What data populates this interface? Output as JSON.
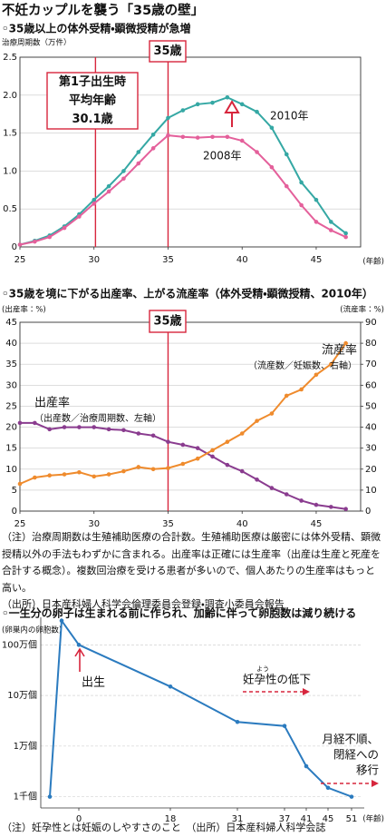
{
  "header": {
    "title": "不妊カップルを襲う「35歳の壁」"
  },
  "chart_data": [
    {
      "type": "line",
      "subtitle": "◦35歳以上の体外受精・顕微授精が急増",
      "y_label": "治療周期数（万件）",
      "x_label": "(年齢)",
      "x": [
        25,
        26,
        27,
        28,
        29,
        30,
        31,
        32,
        33,
        34,
        35,
        36,
        37,
        38,
        39,
        40,
        41,
        42,
        43,
        44,
        45,
        46,
        47
      ],
      "xlim": [
        25,
        48
      ],
      "xticks": [
        25,
        30,
        35,
        40,
        45
      ],
      "ylim": [
        0,
        2.5
      ],
      "yticks": [
        0,
        0.5,
        {
          "value": 1,
          "label": "1.0"
        },
        1.5,
        {
          "value": 2,
          "label": "2.0"
        },
        2.5
      ],
      "grid": true,
      "series": [
        {
          "name": "2010年",
          "color": "#35a8a4",
          "values": [
            0.03,
            0.08,
            0.15,
            0.27,
            0.43,
            0.62,
            0.8,
            1.0,
            1.25,
            1.48,
            1.7,
            1.8,
            1.88,
            1.9,
            1.97,
            1.88,
            1.78,
            1.57,
            1.22,
            0.85,
            0.62,
            0.33,
            0.18
          ]
        },
        {
          "name": "2008年",
          "color": "#e4609b",
          "values": [
            0.03,
            0.07,
            0.13,
            0.25,
            0.4,
            0.57,
            0.73,
            0.9,
            1.1,
            1.3,
            1.47,
            1.45,
            1.44,
            1.45,
            1.45,
            1.4,
            1.25,
            1.05,
            0.8,
            0.55,
            0.33,
            0.22,
            0.13
          ]
        }
      ],
      "reference_lines": [
        {
          "x": 30.1,
          "label": [
            "第1子出生時",
            "平均年齢",
            "30.1歳"
          ]
        },
        {
          "x": 35,
          "label": [
            "35歳"
          ]
        }
      ]
    },
    {
      "type": "line",
      "subtitle": "◦35歳を境に下がる出産率、上がる流産率（体外受精・顕微授精、2010年）",
      "y_label": "(出産率：%)",
      "y2_label": "(流産率：%)",
      "x": [
        25,
        26,
        27,
        28,
        29,
        30,
        31,
        32,
        33,
        34,
        35,
        36,
        37,
        38,
        39,
        40,
        41,
        42,
        43,
        44,
        45,
        46,
        47
      ],
      "xlim": [
        25,
        48
      ],
      "xticks": [
        25,
        30,
        35,
        40,
        45
      ],
      "ylim": [
        0,
        45
      ],
      "yticks": [
        0,
        5,
        10,
        15,
        20,
        25,
        30,
        35,
        40,
        45
      ],
      "y2lim": [
        0,
        90
      ],
      "y2ticks": [
        0,
        10,
        20,
        30,
        40,
        50,
        60,
        70,
        80,
        90
      ],
      "grid": true,
      "series": [
        {
          "name": "出産率",
          "note": "（出産数／治療周期数、左軸）",
          "color": "#8a3c8f",
          "values": [
            21,
            21,
            19.5,
            20,
            20,
            20,
            19.5,
            19.3,
            18.5,
            18,
            16.5,
            15.8,
            15,
            13,
            11,
            9.5,
            7.5,
            5.5,
            4,
            2.5,
            1.5,
            1,
            0.5
          ]
        },
        {
          "name": "流産率",
          "note": "（流産数／妊娠数、右軸）",
          "color": "#ef8b2d",
          "axis": "y2",
          "values": [
            13,
            16,
            17,
            17.5,
            18.5,
            16.5,
            17.5,
            19,
            21,
            20,
            20.5,
            22.5,
            25,
            29,
            33,
            37,
            43,
            46.5,
            55,
            58,
            65,
            70,
            80
          ]
        }
      ],
      "reference_lines": [
        {
          "x": 35,
          "label": [
            "35歳"
          ]
        }
      ]
    },
    {
      "type": "line",
      "subtitle": "◦一生分の卵子は生まれる前に作られ、加齢に伴って卵胞数は減り続ける",
      "y_label": "(卵巣内の卵胞数)",
      "x_label": "(年齢)",
      "categories": [
        null,
        null,
        "0",
        "18",
        "31",
        "37",
        "41",
        "45",
        "51"
      ],
      "yscale": "log",
      "ylim": [
        600,
        3500000
      ],
      "yticks": [
        {
          "value": 1000,
          "label": "1千個"
        },
        {
          "value": 10000,
          "label": "1万個"
        },
        {
          "value": 100000,
          "label": "10万個"
        },
        {
          "value": 1000000,
          "label": "100万個"
        }
      ],
      "grid": true,
      "color": "#2b7bbf",
      "values": [
        1000,
        3000000,
        1000000,
        150000,
        30000,
        25000,
        4000,
        1500,
        1000
      ],
      "annotations": [
        {
          "text": [
            "出生"
          ]
        },
        {
          "text": [
            "妊孕性の低下"
          ],
          "ruby": "よう"
        },
        {
          "text": [
            "月経不順、",
            "閉経への",
            "移行"
          ]
        }
      ]
    }
  ],
  "notes": {
    "text": "（注）治療周期数は生殖補助医療の合計数。生殖補助医療は厳密には体外受精、顕微授精以外の手法もわずかに含まれる。出産率は正確には生産率（出産は生産と死産を合計する概念）。複数回治療を受ける患者が多いので、個人あたりの生産率はもっと高い。",
    "source": "（出所）日本産科婦人科学会倫理委員会登録・調査小委員会報告"
  },
  "footnote": "（注）妊孕性とは妊娠のしやすさのこと　（出所）日本産科婦人科学会誌"
}
